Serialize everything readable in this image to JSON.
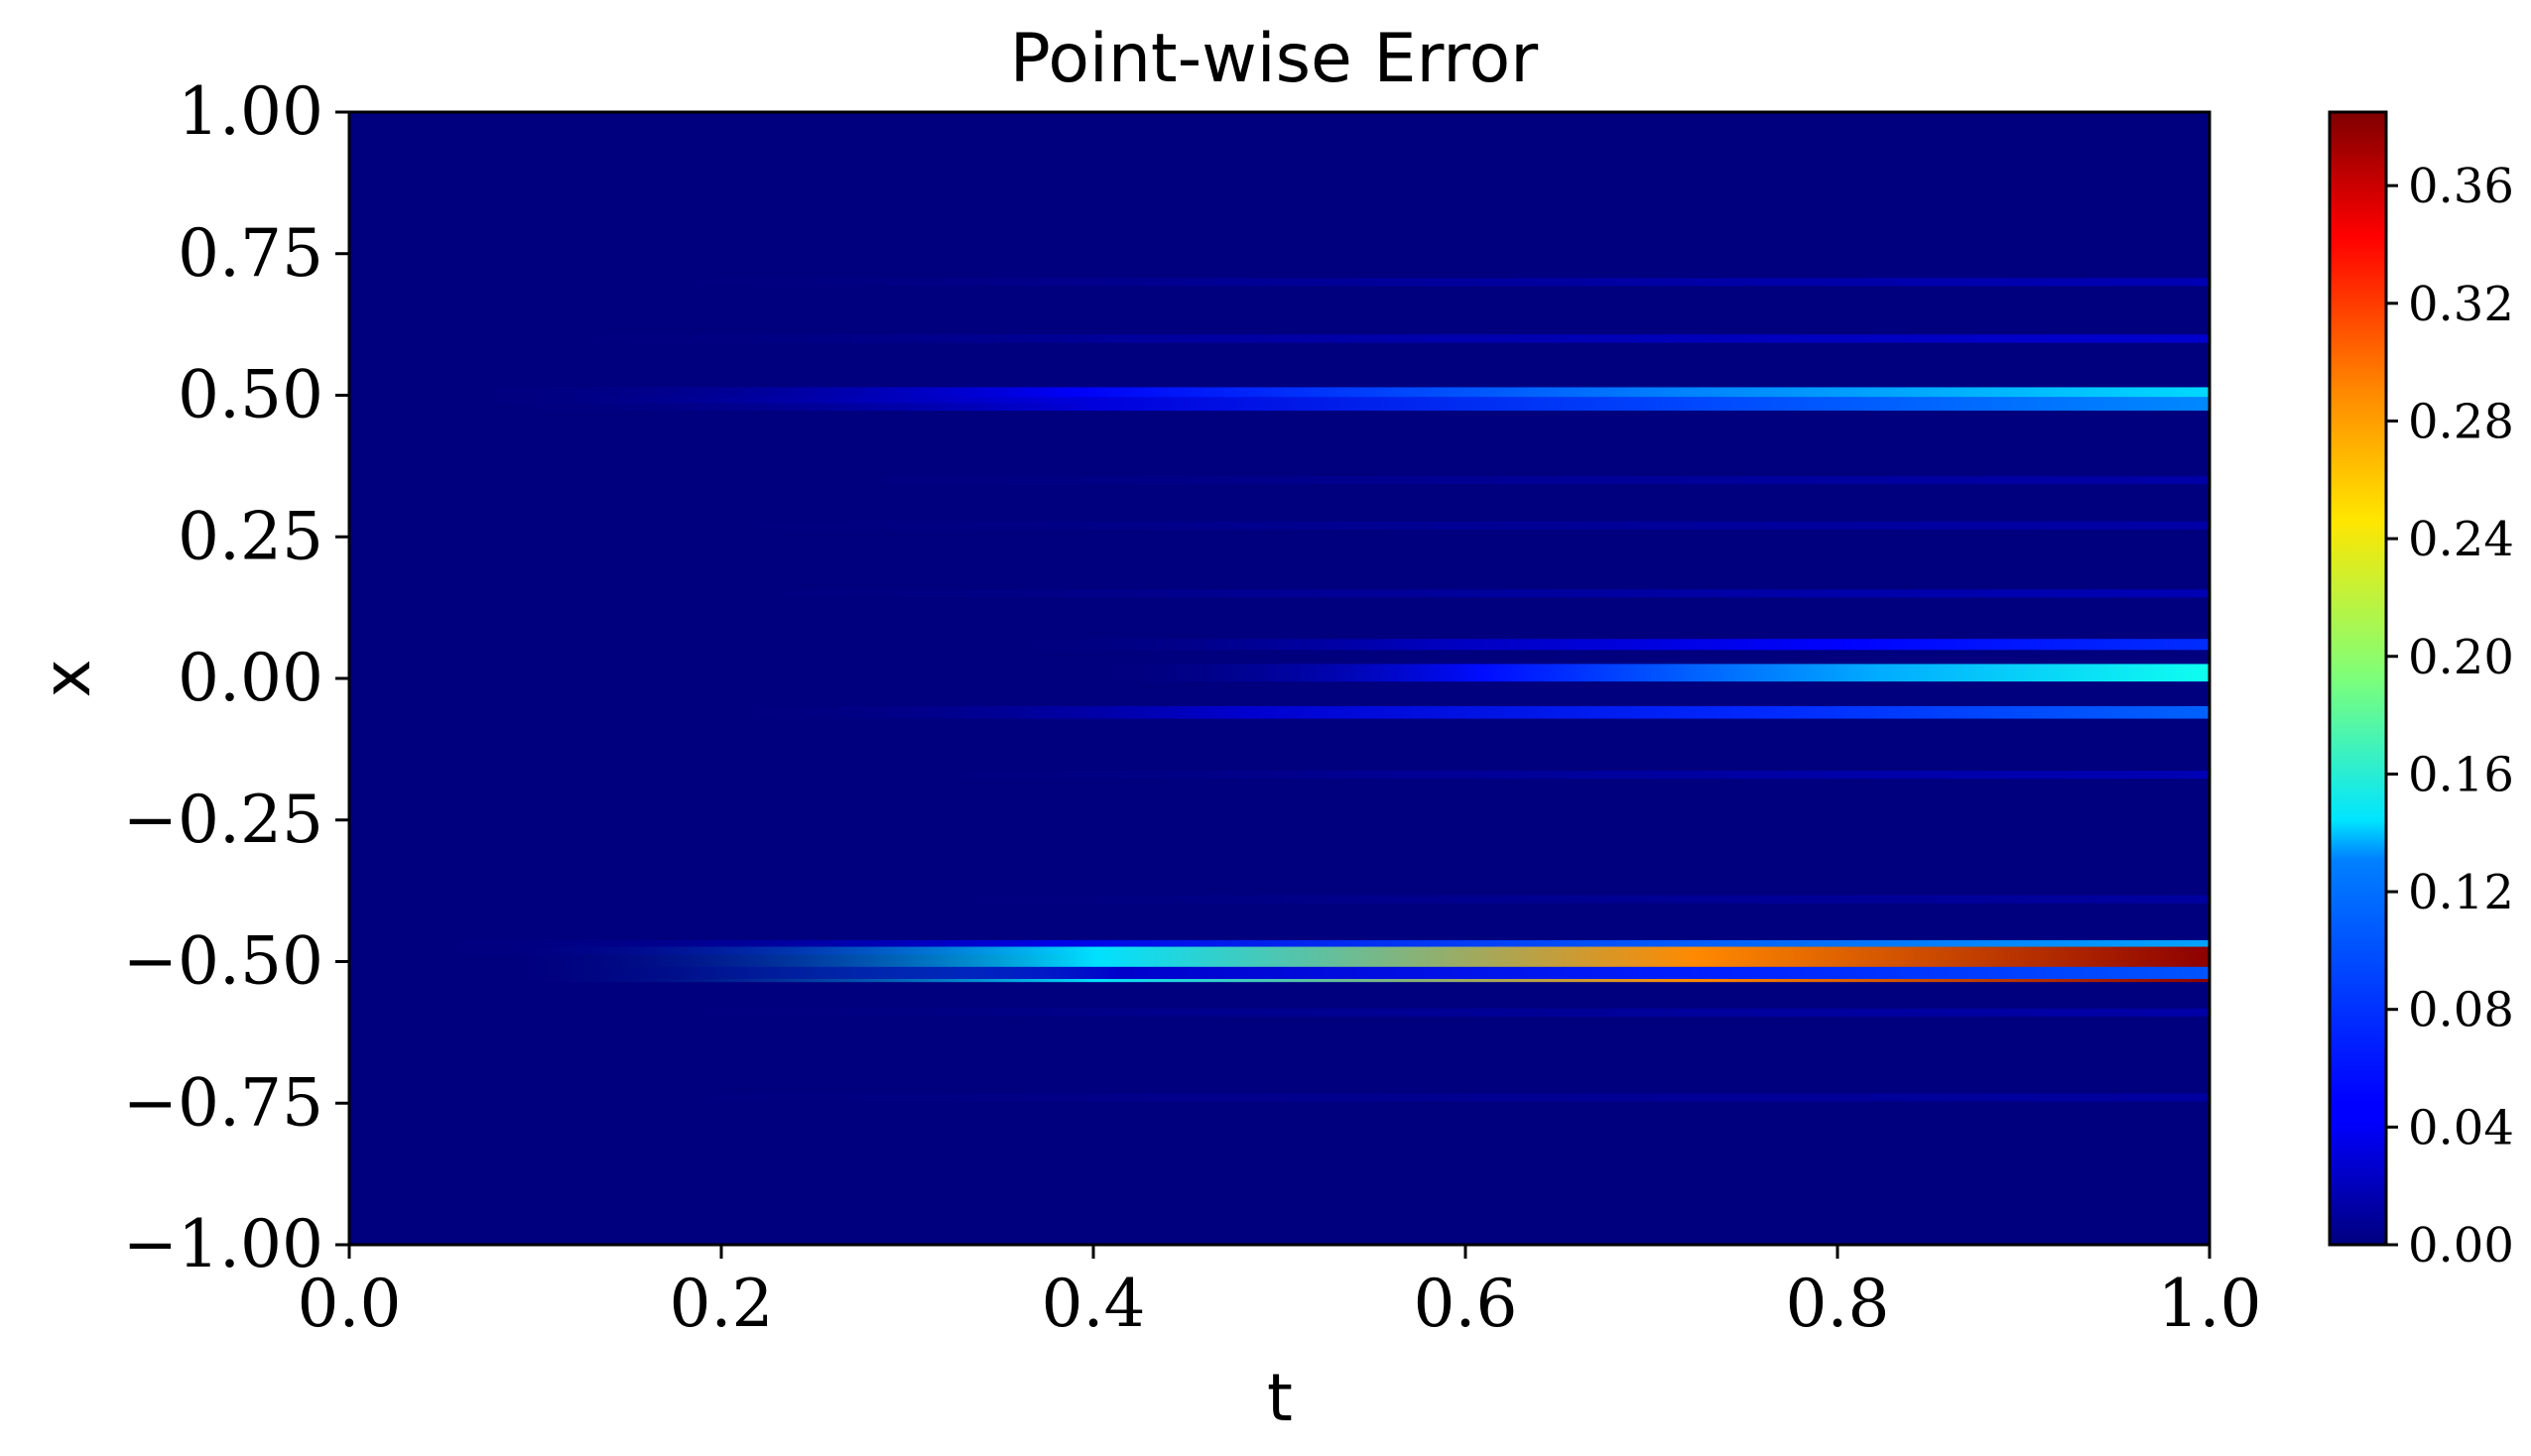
{
  "chart_data": {
    "type": "heatmap",
    "title": "Point-wise Error",
    "xlabel": "t",
    "ylabel": "x",
    "xlim": [
      0.0,
      1.0
    ],
    "ylim": [
      -1.0,
      1.0
    ],
    "xticks": [
      "0.0",
      "0.2",
      "0.4",
      "0.6",
      "0.8",
      "1.0"
    ],
    "xtick_values": [
      0.0,
      0.2,
      0.4,
      0.6,
      0.8,
      1.0
    ],
    "yticks": [
      "1.00",
      "0.75",
      "0.50",
      "0.25",
      "0.00",
      "−0.25",
      "−0.50",
      "−0.75",
      "−1.00"
    ],
    "ytick_values": [
      1.0,
      0.75,
      0.5,
      0.25,
      0.0,
      -0.25,
      -0.5,
      -0.75,
      -1.0
    ],
    "colormap": "jet",
    "colorbar": {
      "range": [
        0.0,
        0.385
      ],
      "ticks": [
        "0.00",
        "0.04",
        "0.08",
        "0.12",
        "0.16",
        "0.20",
        "0.24",
        "0.28",
        "0.32",
        "0.36"
      ],
      "tick_values": [
        0.0,
        0.04,
        0.08,
        0.12,
        0.16,
        0.2,
        0.24,
        0.28,
        0.32,
        0.36
      ]
    },
    "grid": false,
    "error_bands": [
      {
        "x": 0.5,
        "t_start": 0.06,
        "max_error": 0.13
      },
      {
        "x": 0.485,
        "t_start": 0.08,
        "max_error": 0.1
      },
      {
        "x": 0.6,
        "t_start": 0.1,
        "max_error": 0.03
      },
      {
        "x": 0.7,
        "t_start": 0.15,
        "max_error": 0.02
      },
      {
        "x": 0.35,
        "t_start": 0.25,
        "max_error": 0.015
      },
      {
        "x": 0.27,
        "t_start": 0.18,
        "max_error": 0.015
      },
      {
        "x": 0.15,
        "t_start": 0.2,
        "max_error": 0.02
      },
      {
        "x": 0.06,
        "t_start": 0.35,
        "max_error": 0.065
      },
      {
        "x": 0.01,
        "t_start": 0.4,
        "max_error": 0.15
      },
      {
        "x": -0.06,
        "t_start": 0.2,
        "max_error": 0.085
      },
      {
        "x": -0.17,
        "t_start": 0.3,
        "max_error": 0.02
      },
      {
        "x": -0.39,
        "t_start": 0.3,
        "max_error": 0.012
      },
      {
        "x": -0.475,
        "t_start": 0.04,
        "max_error": 0.11
      },
      {
        "x": -0.505,
        "t_start": 0.08,
        "max_error": 0.38
      },
      {
        "x": -0.52,
        "t_start": 0.1,
        "max_error": 0.08
      },
      {
        "x": -0.59,
        "t_start": 0.15,
        "max_error": 0.015
      },
      {
        "x": -0.74,
        "t_start": 0.15,
        "max_error": 0.012
      }
    ]
  }
}
